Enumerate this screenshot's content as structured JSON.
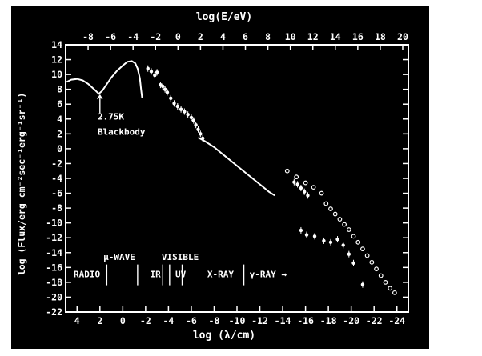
{
  "chart_data": {
    "type": "scatter",
    "title": "",
    "xlabel": "log (λ/cm)",
    "x2label": "log(E/eV)",
    "ylabel": "log (Flux/erg cm⁻²sec⁻¹erg⁻¹sr⁻¹)",
    "xlim": [
      5,
      -25
    ],
    "x2lim": [
      -10,
      20.5
    ],
    "ylim": [
      -22,
      14
    ],
    "grid": false,
    "x_ticks": [
      4,
      2,
      0,
      -2,
      -4,
      -6,
      -8,
      -10,
      -12,
      -14,
      -16,
      -18,
      -20,
      -22,
      -24
    ],
    "x_tick_labels": [
      "4",
      "2",
      "0",
      "-2",
      "-4",
      "-6",
      "-8",
      "-10",
      "-12",
      "-14",
      "-16",
      "-18",
      "-20",
      "-22",
      "-24"
    ],
    "x2_ticks": [
      -8,
      -6,
      -4,
      -2,
      0,
      2,
      4,
      6,
      8,
      10,
      12,
      14,
      16,
      18,
      20
    ],
    "x2_tick_labels": [
      "-8",
      "-6",
      "-4",
      "-2",
      "0",
      "2",
      "4",
      "6",
      "8",
      "10",
      "12",
      "14",
      "16",
      "18",
      "20"
    ],
    "y_ticks": [
      14,
      12,
      10,
      8,
      6,
      4,
      2,
      0,
      -2,
      -4,
      -6,
      -8,
      -10,
      -12,
      -14,
      -16,
      -18,
      -20,
      -22
    ],
    "y_tick_labels": [
      "14",
      "12",
      "10",
      "8",
      "6",
      "4",
      "2",
      "0",
      "-2",
      "-4",
      "-6",
      "-8",
      "-10",
      "-12",
      "-14",
      "-16",
      "-18",
      "-20",
      "-22"
    ],
    "series": [
      {
        "style": "line",
        "points": [
          [
            4.9,
            9.0
          ],
          [
            4.5,
            9.3
          ],
          [
            4.0,
            9.4
          ],
          [
            3.5,
            9.2
          ],
          [
            3.0,
            8.7
          ],
          [
            2.5,
            8.0
          ],
          [
            2.1,
            7.4
          ],
          [
            1.8,
            7.8
          ],
          [
            1.4,
            8.7
          ],
          [
            1.0,
            9.6
          ],
          [
            0.5,
            10.5
          ],
          [
            0.0,
            11.2
          ],
          [
            -0.4,
            11.7
          ],
          [
            -0.8,
            11.8
          ],
          [
            -1.1,
            11.5
          ],
          [
            -1.3,
            10.8
          ],
          [
            -1.5,
            9.5
          ],
          [
            -1.6,
            8.0
          ],
          [
            -1.7,
            6.8
          ]
        ]
      },
      {
        "style": "line",
        "points": [
          [
            -6.6,
            1.5
          ],
          [
            -7.2,
            1.0
          ],
          [
            -8.0,
            0.2
          ],
          [
            -8.8,
            -0.8
          ],
          [
            -9.6,
            -1.8
          ],
          [
            -10.4,
            -2.8
          ],
          [
            -11.2,
            -3.8
          ],
          [
            -12.0,
            -4.8
          ],
          [
            -12.8,
            -5.8
          ],
          [
            -13.3,
            -6.3
          ]
        ]
      },
      {
        "style": "dots",
        "points": [
          [
            -2.2,
            10.8
          ],
          [
            -2.5,
            10.4
          ],
          [
            -2.8,
            9.9
          ],
          [
            -3.0,
            10.3
          ],
          [
            -3.3,
            8.6
          ],
          [
            -3.5,
            8.4
          ],
          [
            -3.7,
            8.0
          ],
          [
            -3.9,
            7.6
          ],
          [
            -4.2,
            6.8
          ],
          [
            -4.5,
            6.1
          ],
          [
            -4.8,
            5.7
          ],
          [
            -5.1,
            5.3
          ],
          [
            -5.4,
            5.0
          ],
          [
            -5.7,
            4.6
          ],
          [
            -6.0,
            4.2
          ],
          [
            -6.2,
            3.8
          ],
          [
            -6.4,
            3.2
          ],
          [
            -6.6,
            2.6
          ],
          [
            -6.8,
            2.0
          ],
          [
            -7.0,
            1.4
          ]
        ]
      },
      {
        "style": "dots",
        "points": [
          [
            -15.0,
            -4.5
          ],
          [
            -15.3,
            -4.8
          ],
          [
            -15.6,
            -5.3
          ],
          [
            -15.9,
            -5.8
          ],
          [
            -16.2,
            -6.3
          ]
        ]
      },
      {
        "style": "dots",
        "points": [
          [
            -15.6,
            -11.0
          ],
          [
            -16.1,
            -11.6
          ],
          [
            -16.8,
            -11.8
          ],
          [
            -17.6,
            -12.4
          ],
          [
            -18.2,
            -12.6
          ],
          [
            -18.8,
            -12.2
          ],
          [
            -19.3,
            -13.0
          ],
          [
            -19.8,
            -14.2
          ],
          [
            -20.2,
            -15.4
          ],
          [
            -21.0,
            -18.3
          ]
        ]
      },
      {
        "style": "circles",
        "points": [
          [
            -14.4,
            -3.0
          ],
          [
            -15.2,
            -3.8
          ],
          [
            -16.0,
            -4.6
          ],
          [
            -16.7,
            -5.2
          ],
          [
            -17.4,
            -6.0
          ],
          [
            -17.8,
            -7.4
          ],
          [
            -18.2,
            -8.1
          ],
          [
            -18.6,
            -8.8
          ],
          [
            -19.0,
            -9.5
          ],
          [
            -19.4,
            -10.2
          ],
          [
            -19.8,
            -10.9
          ],
          [
            -20.2,
            -11.8
          ],
          [
            -20.6,
            -12.6
          ],
          [
            -21.0,
            -13.5
          ],
          [
            -21.4,
            -14.4
          ],
          [
            -21.8,
            -15.3
          ],
          [
            -22.2,
            -16.2
          ],
          [
            -22.6,
            -17.1
          ],
          [
            -23.0,
            -18.0
          ],
          [
            -23.4,
            -18.8
          ],
          [
            -23.8,
            -19.4
          ]
        ]
      }
    ],
    "annotations": [
      {
        "text": "2.75K",
        "x": 2.2,
        "y": 3.9
      },
      {
        "text": "Blackbody",
        "x": 2.2,
        "y": 1.9
      }
    ],
    "bands": [
      {
        "text": "RADIO",
        "x": 4.3,
        "y": -17.3
      },
      {
        "text": "μ-WAVE",
        "x": 1.7,
        "y": -15.0
      },
      {
        "text": "VISIBLE",
        "x": -3.4,
        "y": -15.0
      },
      {
        "text": "IR",
        "x": -2.4,
        "y": -17.3
      },
      {
        "text": "UV",
        "x": -4.6,
        "y": -17.3
      },
      {
        "text": "X-RAY",
        "x": -7.4,
        "y": -17.3
      },
      {
        "text": "γ-RAY →",
        "x": -11.1,
        "y": -17.3
      }
    ],
    "band_dividers": [
      1.4,
      -1.3,
      -3.5,
      -4.1,
      -5.2,
      -10.6
    ]
  }
}
